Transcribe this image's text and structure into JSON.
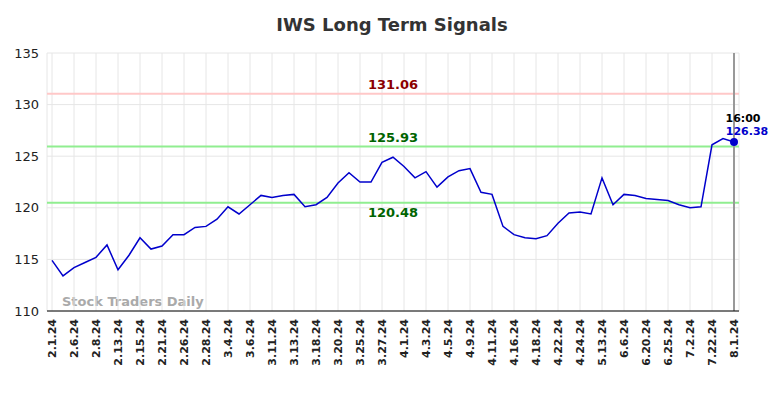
{
  "chart_data": {
    "type": "line",
    "title": "IWS Long Term Signals",
    "watermark": "Stock Traders Daily",
    "last_label": "16:00",
    "categories": [
      "2.1.24",
      null,
      "2.6.24",
      null,
      "2.8.24",
      null,
      "2.13.24",
      null,
      "2.15.24",
      null,
      "2.21.24",
      null,
      "2.26.24",
      null,
      "2.28.24",
      null,
      "3.4.24",
      null,
      "3.6.24",
      null,
      "3.11.24",
      null,
      "3.13.24",
      null,
      "3.18.24",
      null,
      "3.20.24",
      null,
      "3.25.24",
      null,
      "3.27.24",
      null,
      "4.1.24",
      null,
      "4.3.24",
      null,
      "4.5.24",
      null,
      "4.9.24",
      null,
      "4.11.24",
      null,
      "4.16.24",
      null,
      "4.18.24",
      null,
      "4.22.24",
      null,
      "4.24.24",
      null,
      "5.13.24",
      null,
      "6.6.24",
      null,
      "6.20.24",
      null,
      "6.25.24",
      null,
      "7.2.24",
      null,
      "7.22.24",
      null,
      "8.1.24"
    ],
    "values": [
      114.9,
      113.4,
      114.2,
      114.7,
      115.2,
      116.4,
      114.0,
      115.4,
      117.1,
      116.0,
      116.3,
      117.4,
      117.4,
      118.1,
      118.2,
      118.9,
      120.1,
      119.4,
      120.3,
      121.2,
      121.0,
      121.2,
      121.3,
      120.1,
      120.3,
      121.0,
      122.4,
      123.4,
      122.5,
      122.5,
      124.4,
      124.9,
      124.0,
      122.9,
      123.5,
      122.0,
      123.0,
      123.6,
      123.8,
      121.5,
      121.3,
      118.2,
      117.4,
      117.1,
      117.0,
      117.3,
      118.5,
      119.5,
      119.6,
      119.4,
      122.9,
      120.3,
      121.3,
      121.2,
      120.9,
      120.8,
      120.7,
      120.3,
      120.0,
      120.1,
      126.1,
      126.7,
      126.38
    ],
    "color": "#0000cc",
    "ylim": [
      110,
      135
    ],
    "yticks": [
      110,
      115,
      120,
      125,
      130,
      135
    ],
    "grid": true,
    "reference_lines": [
      {
        "value": 131.06,
        "color": "#ffc8c8",
        "label_color": "#8b0000"
      },
      {
        "value": 125.93,
        "color": "#90ee90",
        "label_color": "#006400"
      },
      {
        "value": 120.48,
        "color": "#90ee90",
        "label_color": "#006400"
      }
    ]
  }
}
